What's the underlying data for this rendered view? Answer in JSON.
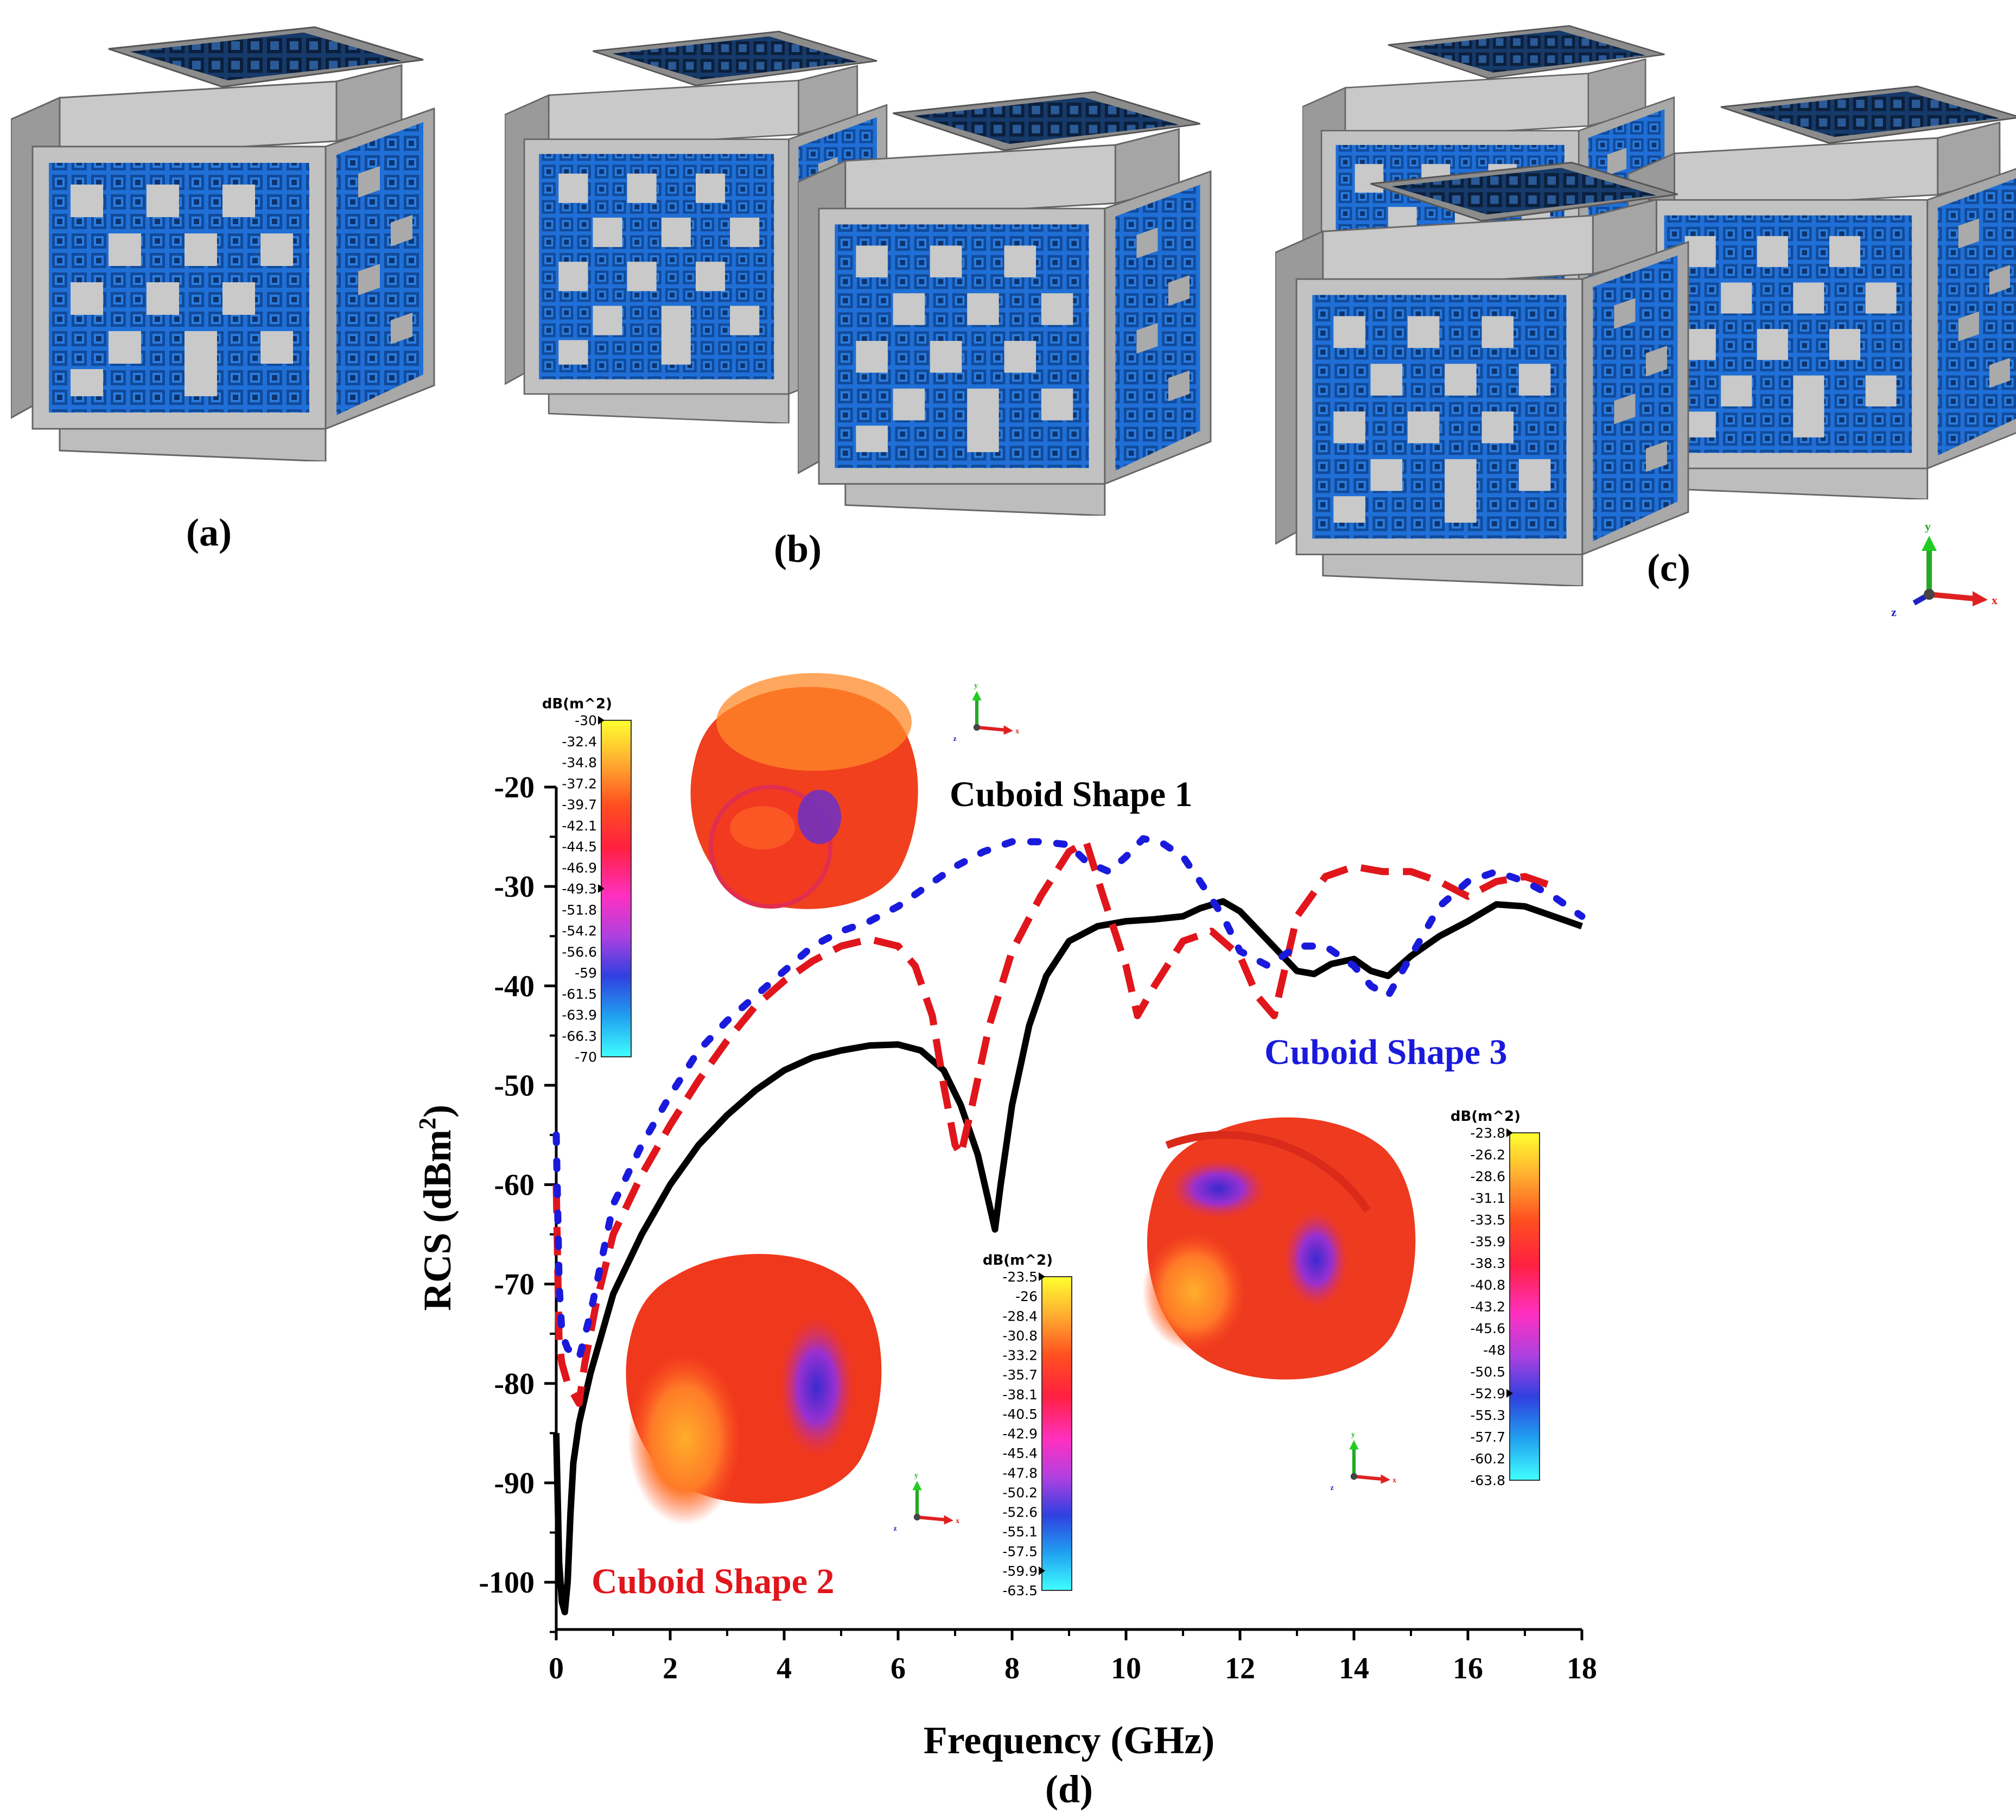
{
  "panels": {
    "a": "(a)",
    "b": "(b)",
    "c": "(c)",
    "d": "(d)"
  },
  "axes_triad": {
    "x": "x",
    "y": "y",
    "z": "z"
  },
  "colors": {
    "shape1": "#000000",
    "shape2": "#e0161c",
    "shape3": "#1a1adc",
    "cube_gray": "#bdbdbd",
    "cube_blue": "#1e6fd4"
  },
  "chart_data": {
    "type": "line",
    "xlabel": "Frequency (GHz)",
    "ylabel": "RCS (dBm",
    "ylabel_sup": "2",
    "ylabel_close": ")",
    "xlim": [
      0,
      18
    ],
    "ylim": [
      -105,
      -15
    ],
    "xticks": [
      0,
      2,
      4,
      6,
      8,
      10,
      12,
      14,
      16,
      18
    ],
    "yticks": [
      -20,
      -30,
      -40,
      -50,
      -60,
      -70,
      -80,
      -90,
      -100
    ],
    "series": [
      {
        "name": "Cuboid Shape 1",
        "color": "#000000",
        "style": "solid",
        "x": [
          0.0,
          0.05,
          0.1,
          0.15,
          0.2,
          0.25,
          0.3,
          0.4,
          0.6,
          0.8,
          1.0,
          1.5,
          2.0,
          2.5,
          3.0,
          3.5,
          4.0,
          4.5,
          5.0,
          5.5,
          6.0,
          6.4,
          6.8,
          7.1,
          7.4,
          7.6,
          7.7,
          7.8,
          8.0,
          8.3,
          8.6,
          9.0,
          9.5,
          10.0,
          10.5,
          11.0,
          11.3,
          11.7,
          12.0,
          12.5,
          13.0,
          13.3,
          13.6,
          14.0,
          14.3,
          14.6,
          15.0,
          15.5,
          16.0,
          16.5,
          17.0,
          17.5,
          18.0
        ],
        "y": [
          -85,
          -98,
          -102,
          -103,
          -100,
          -93,
          -88,
          -84,
          -79,
          -75,
          -71,
          -65,
          -60,
          -56,
          -53,
          -50.5,
          -48.5,
          -47.2,
          -46.5,
          -46.0,
          -45.9,
          -46.5,
          -48.5,
          -52,
          -57,
          -62,
          -64.5,
          -60,
          -52,
          -44,
          -39,
          -35.5,
          -34,
          -33.5,
          -33.3,
          -33.0,
          -32.2,
          -31.5,
          -32.5,
          -35.5,
          -38.5,
          -38.8,
          -37.8,
          -37.3,
          -38.5,
          -39,
          -37,
          -35,
          -33.5,
          -31.8,
          -32,
          -33,
          -34
        ]
      },
      {
        "name": "Cuboid Shape 2",
        "color": "#e0161c",
        "style": "dashed",
        "x": [
          0.0,
          0.05,
          0.1,
          0.2,
          0.3,
          0.4,
          0.5,
          0.7,
          1.0,
          1.5,
          2.0,
          2.5,
          3.0,
          3.5,
          4.0,
          4.5,
          5.0,
          5.5,
          6.0,
          6.3,
          6.6,
          6.8,
          7.0,
          7.1,
          7.3,
          7.6,
          8.0,
          8.5,
          9.0,
          9.3,
          9.6,
          10.0,
          10.2,
          10.5,
          11.0,
          11.5,
          12.0,
          12.3,
          12.6,
          13.0,
          13.5,
          14.0,
          14.5,
          15.0,
          15.5,
          16.0,
          16.5,
          17.0,
          17.5
        ],
        "y": [
          -60,
          -76,
          -78,
          -80,
          -81,
          -82,
          -78,
          -72,
          -65,
          -59,
          -54,
          -49.5,
          -45.5,
          -42,
          -39.5,
          -37.5,
          -36,
          -35.3,
          -36,
          -38,
          -43,
          -50,
          -56,
          -57,
          -52,
          -44,
          -36.5,
          -31,
          -26.5,
          -25.5,
          -31,
          -38,
          -43,
          -40,
          -35.5,
          -34.5,
          -37,
          -41,
          -43,
          -33,
          -29,
          -28,
          -28.5,
          -28.5,
          -29.5,
          -31,
          -29.5,
          -29,
          -30
        ]
      },
      {
        "name": "Cuboid Shape 3",
        "color": "#1a1adc",
        "style": "dotted",
        "x": [
          0.0,
          0.05,
          0.1,
          0.2,
          0.3,
          0.4,
          0.6,
          1.0,
          1.5,
          2.0,
          2.5,
          3.0,
          3.5,
          4.0,
          4.5,
          5.0,
          5.5,
          6.0,
          6.5,
          7.0,
          7.5,
          8.0,
          8.5,
          9.0,
          9.3,
          9.7,
          10.0,
          10.3,
          10.6,
          11.0,
          11.3,
          11.7,
          12.0,
          12.5,
          13.0,
          13.5,
          14.0,
          14.3,
          14.6,
          15.0,
          15.5,
          16.0,
          16.5,
          17.0,
          17.5,
          18.0
        ],
        "y": [
          -55,
          -70,
          -75,
          -76.5,
          -77,
          -77.5,
          -73,
          -62,
          -56,
          -51,
          -46.5,
          -43.5,
          -41,
          -38.5,
          -36,
          -34.5,
          -33.5,
          -32,
          -30,
          -28,
          -26.5,
          -25.5,
          -25.5,
          -25.8,
          -27.5,
          -28.5,
          -27,
          -25.2,
          -25.5,
          -27,
          -29.5,
          -33,
          -36.5,
          -38,
          -36,
          -36,
          -38,
          -40,
          -41,
          -37,
          -32,
          -29.5,
          -28.5,
          -29.5,
          -31,
          -33
        ]
      }
    ],
    "annotations": [
      {
        "text": "Cuboid Shape 1",
        "color": "#000000"
      },
      {
        "text": "Cuboid Shape 2",
        "color": "#e0161c"
      },
      {
        "text": "Cuboid Shape 3",
        "color": "#1a1adc"
      }
    ]
  },
  "colorbars": [
    {
      "title": "dB(m^2)",
      "labels": [
        "-30",
        "-32.4",
        "-34.8",
        "-37.2",
        "-39.7",
        "-42.1",
        "-44.5",
        "-46.9",
        "-49.3",
        "-51.8",
        "-54.2",
        "-56.6",
        "-59",
        "-61.5",
        "-63.9",
        "-66.3",
        "-70"
      ],
      "marker_labels": [
        "-30",
        "-49.3"
      ]
    },
    {
      "title": "dB(m^2)",
      "labels": [
        "-23.5",
        "-26",
        "-28.4",
        "-30.8",
        "-33.2",
        "-35.7",
        "-38.1",
        "-40.5",
        "-42.9",
        "-45.4",
        "-47.8",
        "-50.2",
        "-52.6",
        "-55.1",
        "-57.5",
        "-59.9",
        "-63.5"
      ],
      "marker_labels": [
        "-23.5",
        "-59.9"
      ]
    },
    {
      "title": "dB(m^2)",
      "labels": [
        "-23.8",
        "-26.2",
        "-28.6",
        "-31.1",
        "-33.5",
        "-35.9",
        "-38.3",
        "-40.8",
        "-43.2",
        "-45.6",
        "-48",
        "-50.5",
        "-52.9",
        "-55.3",
        "-57.7",
        "-60.2",
        "-63.8"
      ],
      "marker_labels": [
        "-23.8",
        "-52.9"
      ]
    }
  ]
}
